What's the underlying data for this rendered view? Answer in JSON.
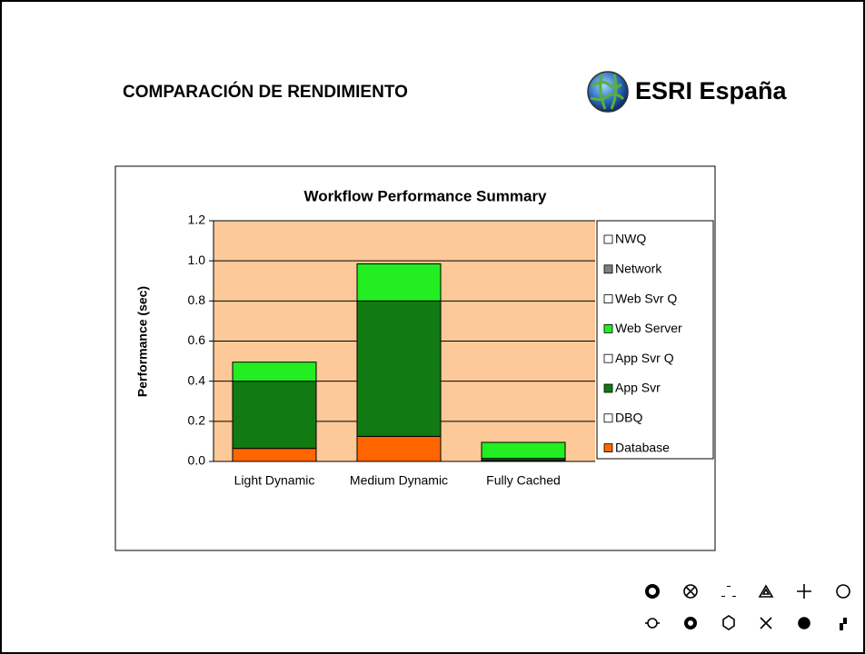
{
  "header": {
    "title": "COMPARACIÓN DE RENDIMIENTO",
    "logo": "ESRI España"
  },
  "chart_data": {
    "type": "stacked_bar",
    "title": "Workflow Performance Summary",
    "y_label": "Performance (sec)",
    "categories": [
      "Light Dynamic",
      "Medium Dynamic",
      "Fully Cached"
    ],
    "series": [
      {
        "name": "Database",
        "color": "#ff6600",
        "values": [
          0.065,
          0.125,
          0.005
        ]
      },
      {
        "name": "DBQ",
        "color": "#ffffff",
        "values": [
          0,
          0,
          0
        ]
      },
      {
        "name": "App Svr",
        "color": "#127a12",
        "values": [
          0.335,
          0.675,
          0.01
        ]
      },
      {
        "name": "App Svr Q",
        "color": "#ffffff",
        "values": [
          0,
          0,
          0
        ]
      },
      {
        "name": "Web Server",
        "color": "#22ee22",
        "values": [
          0.095,
          0.185,
          0.08
        ]
      },
      {
        "name": "Web Svr Q",
        "color": "#ffffff",
        "values": [
          0,
          0,
          0
        ]
      },
      {
        "name": "Network",
        "color": "#808080",
        "values": [
          0,
          0,
          0
        ]
      },
      {
        "name": "NWQ",
        "color": "#ffffff",
        "values": [
          0,
          0,
          0
        ]
      }
    ],
    "ylim": [
      0,
      1.2
    ],
    "yticks": [
      {
        "value": 0,
        "label": "0.0"
      },
      0.2,
      0.4,
      0.6,
      0.8,
      {
        "value": 1,
        "label": "1.0"
      },
      1.2
    ],
    "grid": true,
    "legend": "right",
    "background": "#fdc998"
  }
}
